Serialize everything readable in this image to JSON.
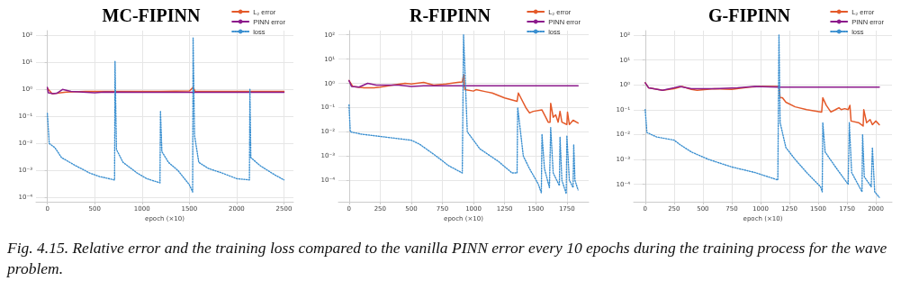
{
  "chart_data": [
    {
      "type": "line",
      "title": "MC-FIPINN",
      "xlabel": "epoch (×10)",
      "xlim": [
        -120,
        2600
      ],
      "xticks": [
        0,
        500,
        1000,
        1500,
        2000,
        2500
      ],
      "ylim": [
        7e-05,
        150
      ],
      "log": "y",
      "grid": true,
      "legend": "top right",
      "marker": "none",
      "yticks": [
        {
          "value": 0.0001,
          "label": "10⁻⁴"
        },
        {
          "value": 0.001,
          "label": "10⁻³"
        },
        {
          "value": 0.01,
          "label": "10⁻²"
        },
        {
          "value": 0.1,
          "label": "10⁻¹"
        },
        {
          "value": 1,
          "label": "10⁰"
        },
        {
          "value": 10,
          "label": "10¹"
        },
        {
          "value": 100,
          "label": "10²"
        }
      ],
      "annotations": [
        "Fig. 4.15. Relative error and the training loss compared to the vanilla PINN error every 10 epochs during the training process for the wave problem."
      ],
      "series": [
        {
          "name": "L₂ error",
          "color": "#e45a2a",
          "line_style": "solid",
          "x": [
            0,
            50,
            100,
            200,
            400,
            700,
            1000,
            1200,
            1500,
            1540,
            1560,
            2000,
            2500
          ],
          "values": [
            1.1,
            0.7,
            0.72,
            0.8,
            0.85,
            0.85,
            0.85,
            0.85,
            0.87,
            1.2,
            0.85,
            0.85,
            0.85
          ]
        },
        {
          "name": "PINN error",
          "color": "#8c1a8c",
          "line_style": "solid",
          "x": [
            0,
            10,
            60,
            100,
            160,
            250,
            500,
            600,
            1000,
            1500,
            2000,
            2500
          ],
          "values": [
            1.2,
            0.75,
            0.7,
            0.72,
            1.0,
            0.85,
            0.75,
            0.8,
            0.78,
            0.78,
            0.78,
            0.78
          ]
        },
        {
          "name": "loss",
          "color": "#3a8fd0",
          "line_style": "dotted",
          "x": [
            0,
            20,
            80,
            150,
            300,
            450,
            550,
            710,
            715,
            730,
            800,
            950,
            1050,
            1190,
            1195,
            1210,
            1280,
            1380,
            1500,
            1535,
            1540,
            1555,
            1600,
            1700,
            1850,
            2000,
            2135,
            2140,
            2150,
            2250,
            2400,
            2500
          ],
          "values": [
            0.13,
            0.01,
            0.007,
            0.003,
            0.0015,
            0.0008,
            0.0006,
            0.00045,
            11,
            0.006,
            0.002,
            0.0008,
            0.0005,
            0.00035,
            0.16,
            0.005,
            0.002,
            0.001,
            0.0003,
            0.00016,
            80,
            0.02,
            0.002,
            0.0012,
            0.0008,
            0.0005,
            0.00045,
            1.0,
            0.003,
            0.0015,
            0.0007,
            0.00045
          ]
        }
      ]
    },
    {
      "type": "line",
      "title": "R-FIPINN",
      "xlabel": "epoch (×10)",
      "xlim": [
        -85,
        1925
      ],
      "xticks": [
        0,
        250,
        500,
        750,
        1000,
        1250,
        1500,
        1750
      ],
      "ylim": [
        1.3e-05,
        150
      ],
      "log": "y",
      "grid": true,
      "legend": "top right",
      "marker": "none",
      "yticks": [
        {
          "value": 0.0001,
          "label": "10⁻⁴"
        },
        {
          "value": 0.001,
          "label": "10⁻³"
        },
        {
          "value": 0.01,
          "label": "10⁻²"
        },
        {
          "value": 0.1,
          "label": "10⁻¹"
        },
        {
          "value": 1,
          "label": "10⁰"
        },
        {
          "value": 10,
          "label": "10¹"
        },
        {
          "value": 100,
          "label": "10²"
        }
      ],
      "series": [
        {
          "name": "L₂ error",
          "color": "#e45a2a",
          "line_style": "solid",
          "x": [
            0,
            30,
            120,
            200,
            250,
            350,
            450,
            500,
            600,
            680,
            780,
            910,
            920,
            930,
            1000,
            1020,
            1100,
            1150,
            1250,
            1350,
            1360,
            1420,
            1450,
            1480,
            1550,
            1580,
            1600,
            1615,
            1620,
            1640,
            1660,
            1680,
            1695,
            1710,
            1750,
            1755,
            1770,
            1800,
            1840
          ],
          "values": [
            1.3,
            0.75,
            0.65,
            0.65,
            0.7,
            0.85,
            1.0,
            0.95,
            1.1,
            0.85,
            0.95,
            1.15,
            2.3,
            0.55,
            0.48,
            0.55,
            0.45,
            0.4,
            0.25,
            0.18,
            0.4,
            0.1,
            0.06,
            0.07,
            0.08,
            0.04,
            0.025,
            0.025,
            0.15,
            0.04,
            0.05,
            0.025,
            0.07,
            0.025,
            0.02,
            0.065,
            0.02,
            0.03,
            0.023
          ]
        },
        {
          "name": "PINN error",
          "color": "#8c1a8c",
          "line_style": "solid",
          "x": [
            0,
            20,
            80,
            150,
            220,
            400,
            500,
            600,
            1000,
            1500,
            1840
          ],
          "values": [
            1.3,
            0.75,
            0.7,
            1.0,
            0.85,
            0.85,
            0.75,
            0.8,
            0.8,
            0.8,
            0.8
          ]
        },
        {
          "name": "loss",
          "color": "#3a8fd0",
          "line_style": "dotted",
          "x": [
            0,
            10,
            100,
            300,
            500,
            570,
            700,
            800,
            910,
            920,
            950,
            1050,
            1200,
            1310,
            1350,
            1355,
            1400,
            1450,
            1520,
            1545,
            1550,
            1570,
            1610,
            1620,
            1640,
            1690,
            1695,
            1710,
            1745,
            1750,
            1770,
            1800,
            1805,
            1815,
            1840
          ],
          "values": [
            0.13,
            0.01,
            0.008,
            0.006,
            0.0045,
            0.003,
            0.001,
            0.0004,
            0.0002,
            100,
            0.01,
            0.002,
            0.0006,
            0.0002,
            0.0002,
            0.1,
            0.001,
            0.0003,
            7e-05,
            3e-05,
            0.008,
            0.0003,
            5e-05,
            0.015,
            0.0002,
            6e-05,
            0.006,
            0.0001,
            2.8e-05,
            0.007,
            0.0001,
            5e-05,
            0.003,
            0.0001,
            4e-05
          ]
        }
      ]
    },
    {
      "type": "line",
      "title": "G-FIPINN",
      "xlabel": "epoch (×10)",
      "xlim": [
        -100,
        2140
      ],
      "xticks": [
        0,
        250,
        500,
        750,
        1000,
        1250,
        1500,
        1750,
        2000
      ],
      "ylim": [
        2e-05,
        150
      ],
      "log": "y",
      "grid": true,
      "legend": "top right",
      "marker": "none",
      "yticks": [
        {
          "value": 0.0001,
          "label": "10⁻⁴"
        },
        {
          "value": 0.001,
          "label": "10⁻³"
        },
        {
          "value": 0.01,
          "label": "10⁻²"
        },
        {
          "value": 0.1,
          "label": "10⁻¹"
        },
        {
          "value": 1,
          "label": "10⁰"
        },
        {
          "value": 10,
          "label": "10¹"
        },
        {
          "value": 100,
          "label": "10²"
        }
      ],
      "series": [
        {
          "name": "L₂ error",
          "color": "#e45a2a",
          "line_style": "solid",
          "x": [
            0,
            30,
            150,
            250,
            320,
            400,
            450,
            600,
            750,
            900,
            1000,
            1160,
            1170,
            1190,
            1220,
            1300,
            1400,
            1530,
            1540,
            1570,
            1610,
            1650,
            1680,
            1700,
            1730,
            1760,
            1775,
            1785,
            1850,
            1890,
            1895,
            1920,
            1950,
            1970,
            2000,
            2030
          ],
          "values": [
            1.2,
            0.75,
            0.6,
            0.7,
            0.85,
            0.65,
            0.6,
            0.7,
            0.65,
            0.8,
            0.85,
            0.85,
            0.3,
            0.3,
            0.2,
            0.13,
            0.1,
            0.08,
            0.3,
            0.15,
            0.08,
            0.1,
            0.12,
            0.1,
            0.11,
            0.1,
            0.15,
            0.035,
            0.03,
            0.022,
            0.1,
            0.03,
            0.04,
            0.025,
            0.035,
            0.025
          ]
        },
        {
          "name": "PINN error",
          "color": "#8c1a8c",
          "line_style": "solid",
          "x": [
            0,
            30,
            150,
            250,
            300,
            400,
            600,
            800,
            950,
            1160,
            1500,
            2030
          ],
          "values": [
            1.2,
            0.75,
            0.6,
            0.75,
            0.85,
            0.7,
            0.7,
            0.75,
            0.85,
            0.8,
            0.8,
            0.8
          ]
        },
        {
          "name": "loss",
          "color": "#3a8fd0",
          "line_style": "dotted",
          "x": [
            0,
            15,
            100,
            250,
            300,
            400,
            550,
            750,
            950,
            1150,
            1160,
            1170,
            1220,
            1300,
            1400,
            1520,
            1535,
            1540,
            1560,
            1650,
            1760,
            1770,
            1790,
            1880,
            1885,
            1900,
            1960,
            1970,
            1990,
            2030
          ],
          "values": [
            0.1,
            0.012,
            0.008,
            0.006,
            0.004,
            0.002,
            0.001,
            0.0005,
            0.0003,
            0.00015,
            100,
            0.03,
            0.003,
            0.001,
            0.0003,
            8e-05,
            5e-05,
            0.03,
            0.002,
            0.0005,
            0.0001,
            0.03,
            0.0003,
            5e-05,
            0.01,
            0.0002,
            8e-05,
            0.003,
            5e-05,
            3e-05
          ]
        }
      ]
    }
  ]
}
